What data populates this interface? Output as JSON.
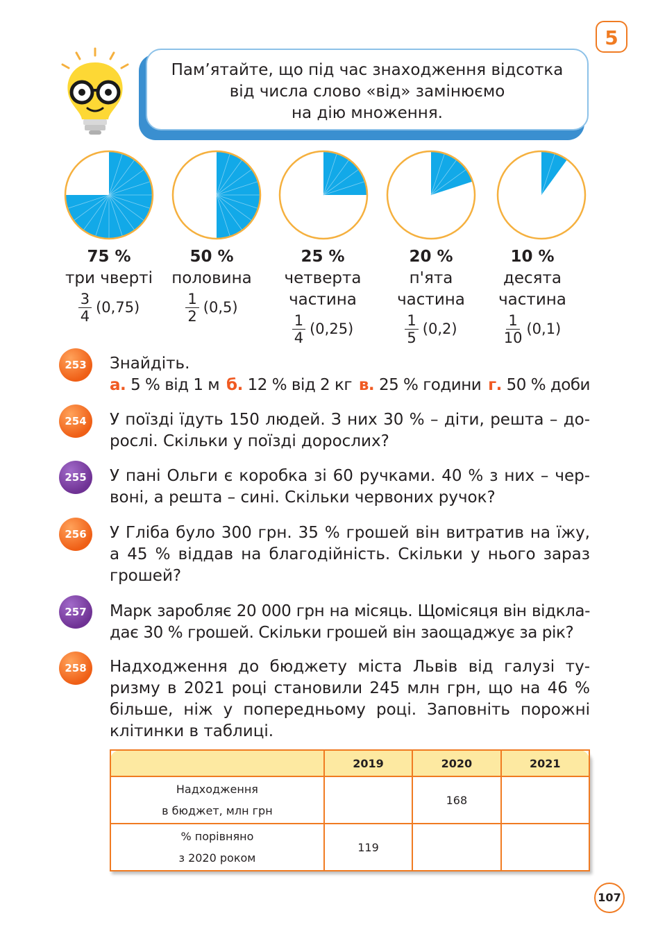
{
  "chapter_number": "5",
  "note": {
    "lines": [
      "Пам’ятайте, що під час знаходження відсотка",
      "від числа слово «від» замінюємо",
      "на дію множення."
    ]
  },
  "colors": {
    "accent": "#f07b22",
    "pie_fill": "#12a9e8",
    "pie_border": "#f5b03e",
    "note_frame": "#3a8fd0"
  },
  "pies": [
    {
      "fraction_value": 0.75,
      "percent": "75 %",
      "words": [
        "три чверті"
      ],
      "num": "3",
      "den": "4",
      "decimal": "(0,75)"
    },
    {
      "fraction_value": 0.5,
      "percent": "50 %",
      "words": [
        "половина"
      ],
      "num": "1",
      "den": "2",
      "decimal": "(0,5)"
    },
    {
      "fraction_value": 0.25,
      "percent": "25 %",
      "words": [
        "четверта",
        "частина"
      ],
      "num": "1",
      "den": "4",
      "decimal": "(0,25)"
    },
    {
      "fraction_value": 0.2,
      "percent": "20 %",
      "words": [
        "п'ята",
        "частина"
      ],
      "num": "1",
      "den": "5",
      "decimal": "(0,2)"
    },
    {
      "fraction_value": 0.1,
      "percent": "10 %",
      "words": [
        "десята",
        "частина"
      ],
      "num": "1",
      "den": "10",
      "decimal": "(0,1)"
    }
  ],
  "tasks": {
    "t253": {
      "number": "253",
      "title": "Знайдіть.",
      "items": [
        {
          "label": "а.",
          "text": "5 % від 1 м"
        },
        {
          "label": "б.",
          "text": "12 % від 2 кг"
        },
        {
          "label": "в.",
          "text": "25 % години"
        },
        {
          "label": "г.",
          "text": "50 % доби"
        }
      ]
    },
    "t254": {
      "number": "254",
      "lines": [
        "У поїзді їдуть 150 людей. З них 30 % – діти, решта – до-",
        "рослі. Скільки у поїзді дорослих?"
      ]
    },
    "t255": {
      "number": "255",
      "lines": [
        "У пані Ольги є коробка зі 60 ручками. 40 % з них – чер-",
        "воні, а решта – сині. Скільки червоних ручок?"
      ]
    },
    "t256": {
      "number": "256",
      "lines": [
        "У Гліба було 300 грн. 35 % грошей він витратив на їжу,",
        "а 45 % віддав на благодійність. Скільки у нього зараз",
        "грошей?"
      ]
    },
    "t257": {
      "number": "257",
      "lines": [
        "Марк заробляє 20 000 грн на місяць. Щомісяця він відкла-",
        "дає 30 % грошей. Скільки грошей він заощаджує за рік?"
      ]
    },
    "t258": {
      "number": "258",
      "lines": [
        "Надходження до бюджету міста Львів від галузі ту-",
        "ризму в 2021 році становили 245 млн грн, що на 46 %",
        "більше, ніж у попередньому році. Заповніть порожні",
        "клітинки в таблиці."
      ]
    }
  },
  "table": {
    "headers": [
      "",
      "2019",
      "2020",
      "2021"
    ],
    "rows": [
      {
        "label_lines": [
          "Надходження",
          "в бюджет, млн грн"
        ],
        "cells": [
          "",
          "168",
          ""
        ]
      },
      {
        "label_lines": [
          "% порівняно",
          "з 2020 роком"
        ],
        "cells": [
          "119",
          "",
          ""
        ]
      }
    ]
  },
  "page_number": "107"
}
